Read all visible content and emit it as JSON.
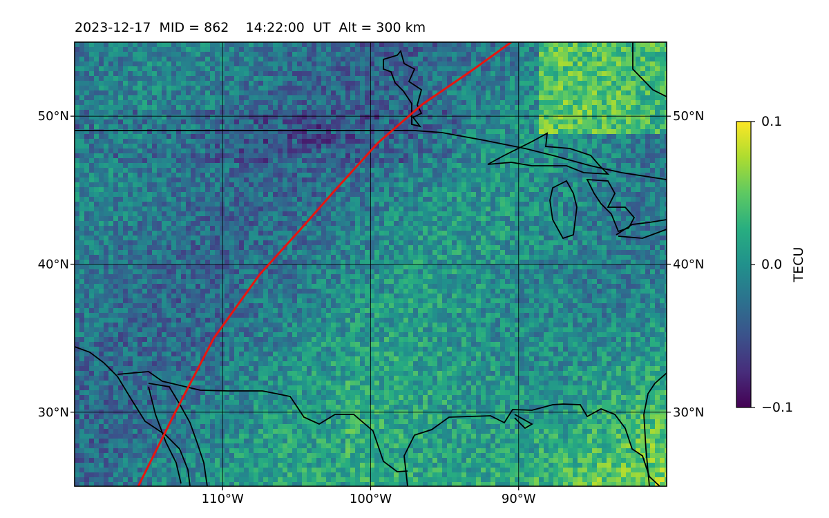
{
  "title": "2023-12-17  MID = 862    14:22:00  UT  Alt = 300 km",
  "map": {
    "projection": "PlateCarree",
    "lon_range": [
      -120,
      -80
    ],
    "lat_range": [
      25,
      55
    ],
    "lat_ticks": [
      {
        "value": 30,
        "label": "30°N"
      },
      {
        "value": 40,
        "label": "40°N"
      },
      {
        "value": 50,
        "label": "50°N"
      }
    ],
    "lon_ticks": [
      {
        "value": -110,
        "label": "110°W"
      },
      {
        "value": -100,
        "label": "100°W"
      },
      {
        "value": -90,
        "label": "90°W"
      }
    ],
    "gridlines": true,
    "track_color": "#e8150f",
    "track": [
      [
        -115.7,
        25
      ],
      [
        -113.2,
        30
      ],
      [
        -110.6,
        35
      ],
      [
        -107.5,
        39.3
      ],
      [
        -104.7,
        42.4
      ],
      [
        -102.4,
        45
      ],
      [
        -99.5,
        48.2
      ],
      [
        -96.5,
        50.8
      ],
      [
        -93,
        53.2
      ],
      [
        -90.5,
        55
      ]
    ]
  },
  "colorbar": {
    "label": "TECU",
    "min": -0.1,
    "max": 0.1,
    "colormap": "viridis",
    "ticks": [
      {
        "value": 0.1,
        "label": "0.1"
      },
      {
        "value": 0.0,
        "label": "0.0"
      },
      {
        "value": -0.1,
        "label": "−0.1"
      }
    ]
  }
}
